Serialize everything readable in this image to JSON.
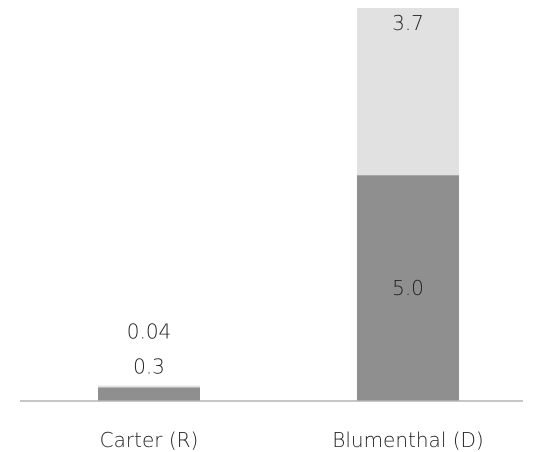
{
  "chart_data": {
    "type": "bar",
    "stacked": true,
    "categories": [
      "Carter (R)",
      "Blumenthal (D)"
    ],
    "series": [
      {
        "values": [
          0.3,
          5.0
        ],
        "color": "#8f8f8f",
        "data_labels": [
          "0.3",
          "5.0"
        ]
      },
      {
        "values": [
          0.04,
          3.7
        ],
        "color": "#e1e1e1",
        "data_labels": [
          "0.04",
          "3.7"
        ]
      }
    ],
    "title": "",
    "xlabel": "",
    "ylabel": "",
    "ylim": [
      0,
      8.7
    ],
    "grid": false,
    "legend": "none",
    "axis_color": "#b3b3b3"
  }
}
